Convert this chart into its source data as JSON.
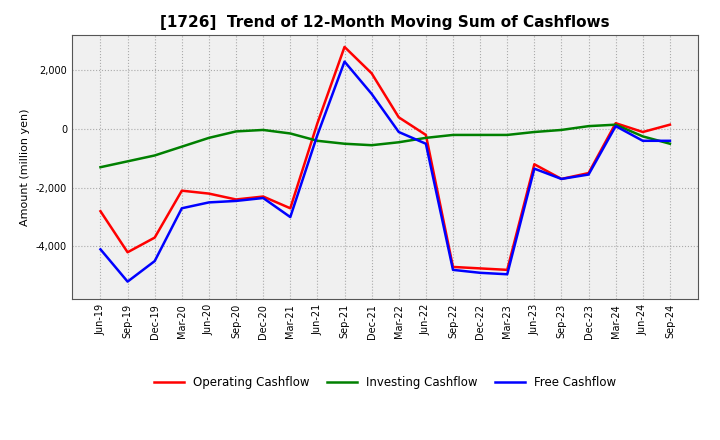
{
  "title": "[1726]  Trend of 12-Month Moving Sum of Cashflows",
  "ylabel": "Amount (million yen)",
  "x_labels": [
    "Jun-19",
    "Sep-19",
    "Dec-19",
    "Mar-20",
    "Jun-20",
    "Sep-20",
    "Dec-20",
    "Mar-21",
    "Jun-21",
    "Sep-21",
    "Dec-21",
    "Mar-22",
    "Jun-22",
    "Sep-22",
    "Dec-22",
    "Mar-23",
    "Jun-23",
    "Sep-23",
    "Dec-23",
    "Mar-24",
    "Jun-24",
    "Sep-24"
  ],
  "operating_cashflow": [
    -2800,
    -4200,
    -3700,
    -2100,
    -2200,
    -2400,
    -2300,
    -2700,
    200,
    2800,
    1900,
    400,
    -200,
    -4700,
    -4750,
    -4800,
    -1200,
    -1700,
    -1500,
    200,
    -100,
    150
  ],
  "investing_cashflow": [
    -1300,
    -1100,
    -900,
    -600,
    -300,
    -80,
    -30,
    -150,
    -400,
    -500,
    -550,
    -450,
    -300,
    -200,
    -200,
    -200,
    -100,
    -30,
    100,
    150,
    -250,
    -500
  ],
  "free_cashflow": [
    -4100,
    -5200,
    -4500,
    -2700,
    -2500,
    -2450,
    -2350,
    -3000,
    -200,
    2300,
    1200,
    -100,
    -500,
    -4800,
    -4900,
    -4950,
    -1350,
    -1700,
    -1550,
    100,
    -400,
    -400
  ],
  "operating_color": "#ff0000",
  "investing_color": "#008000",
  "free_color": "#0000ff",
  "background_color": "#ffffff",
  "plot_bg_color": "#f0f0f0",
  "ylim_min": -5800,
  "ylim_max": 3200,
  "yticks": [
    -4000,
    -2000,
    0,
    2000
  ],
  "line_width": 1.8,
  "legend_labels": [
    "Operating Cashflow",
    "Investing Cashflow",
    "Free Cashflow"
  ],
  "grid_color": "#999999",
  "title_fontsize": 11,
  "label_fontsize": 8,
  "tick_fontsize": 7
}
